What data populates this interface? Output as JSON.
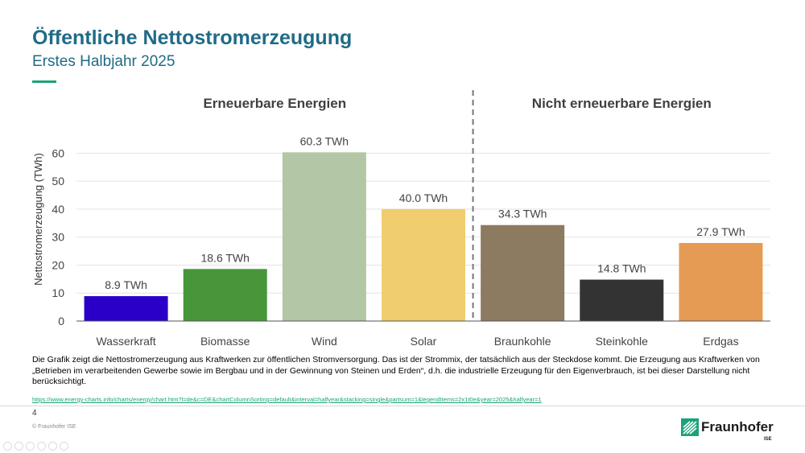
{
  "header": {
    "title": "Öffentliche Nettostromerzeugung",
    "subtitle": "Erstes Halbjahr 2025"
  },
  "chart_data": {
    "type": "bar",
    "ylabel": "Nettostromerzeugung (TWh)",
    "ylim": [
      0,
      67
    ],
    "yticks": [
      0,
      10,
      20,
      30,
      40,
      50,
      60
    ],
    "grid": true,
    "groups": [
      {
        "label": "Erneuerbare Energien",
        "categories": [
          "Wasserkraft",
          "Biomasse",
          "Wind",
          "Solar"
        ]
      },
      {
        "label": "Nicht erneuerbare Energien",
        "categories": [
          "Braunkohle",
          "Steinkohle",
          "Erdgas"
        ]
      }
    ],
    "categories": [
      "Wasserkraft",
      "Biomasse",
      "Wind",
      "Solar",
      "Braunkohle",
      "Steinkohle",
      "Erdgas"
    ],
    "values": [
      8.9,
      18.6,
      60.3,
      40.0,
      34.3,
      14.8,
      27.9
    ],
    "value_labels": [
      "8.9 TWh",
      "18.6 TWh",
      "60.3 TWh",
      "40.0 TWh",
      "34.3 TWh",
      "14.8 TWh",
      "27.9 TWh"
    ],
    "colors": [
      "#2a00c8",
      "#47963a",
      "#b3c6a5",
      "#f0cd6e",
      "#8c7a61",
      "#333333",
      "#e69b55"
    ]
  },
  "caption": "Die Grafik zeigt die Nettostromerzeugung aus Kraftwerken zur öffentlichen Stromversorgung. Das ist der Strommix, der tatsächlich aus der Steckdose kommt. Die Erzeugung aus Kraftwerken von „Betrieben im verarbeitenden Gewerbe sowie im Bergbau und in der Gewinnung von Steinen und Erden“, d.h. die industrielle Erzeugung für den Eigenverbrauch, ist bei dieser Darstellung nicht berücksichtigt.",
  "source_link": "https://www.energy-charts.info/charts/energy/chart.htm?l=de&c=DE&chartColumnSorting=default&interval=halfyear&stacking=single&partsum=1&legendItems=2x1t0e&year=2025&halfyear=1",
  "footer": {
    "page_number": "4",
    "copyright": "© Fraunhofer ISE",
    "logo_name": "Fraunhofer",
    "logo_sub": "ISE"
  },
  "colors": {
    "title": "#1f6b87",
    "accent": "#1aa37a",
    "link": "#1aa37a"
  }
}
